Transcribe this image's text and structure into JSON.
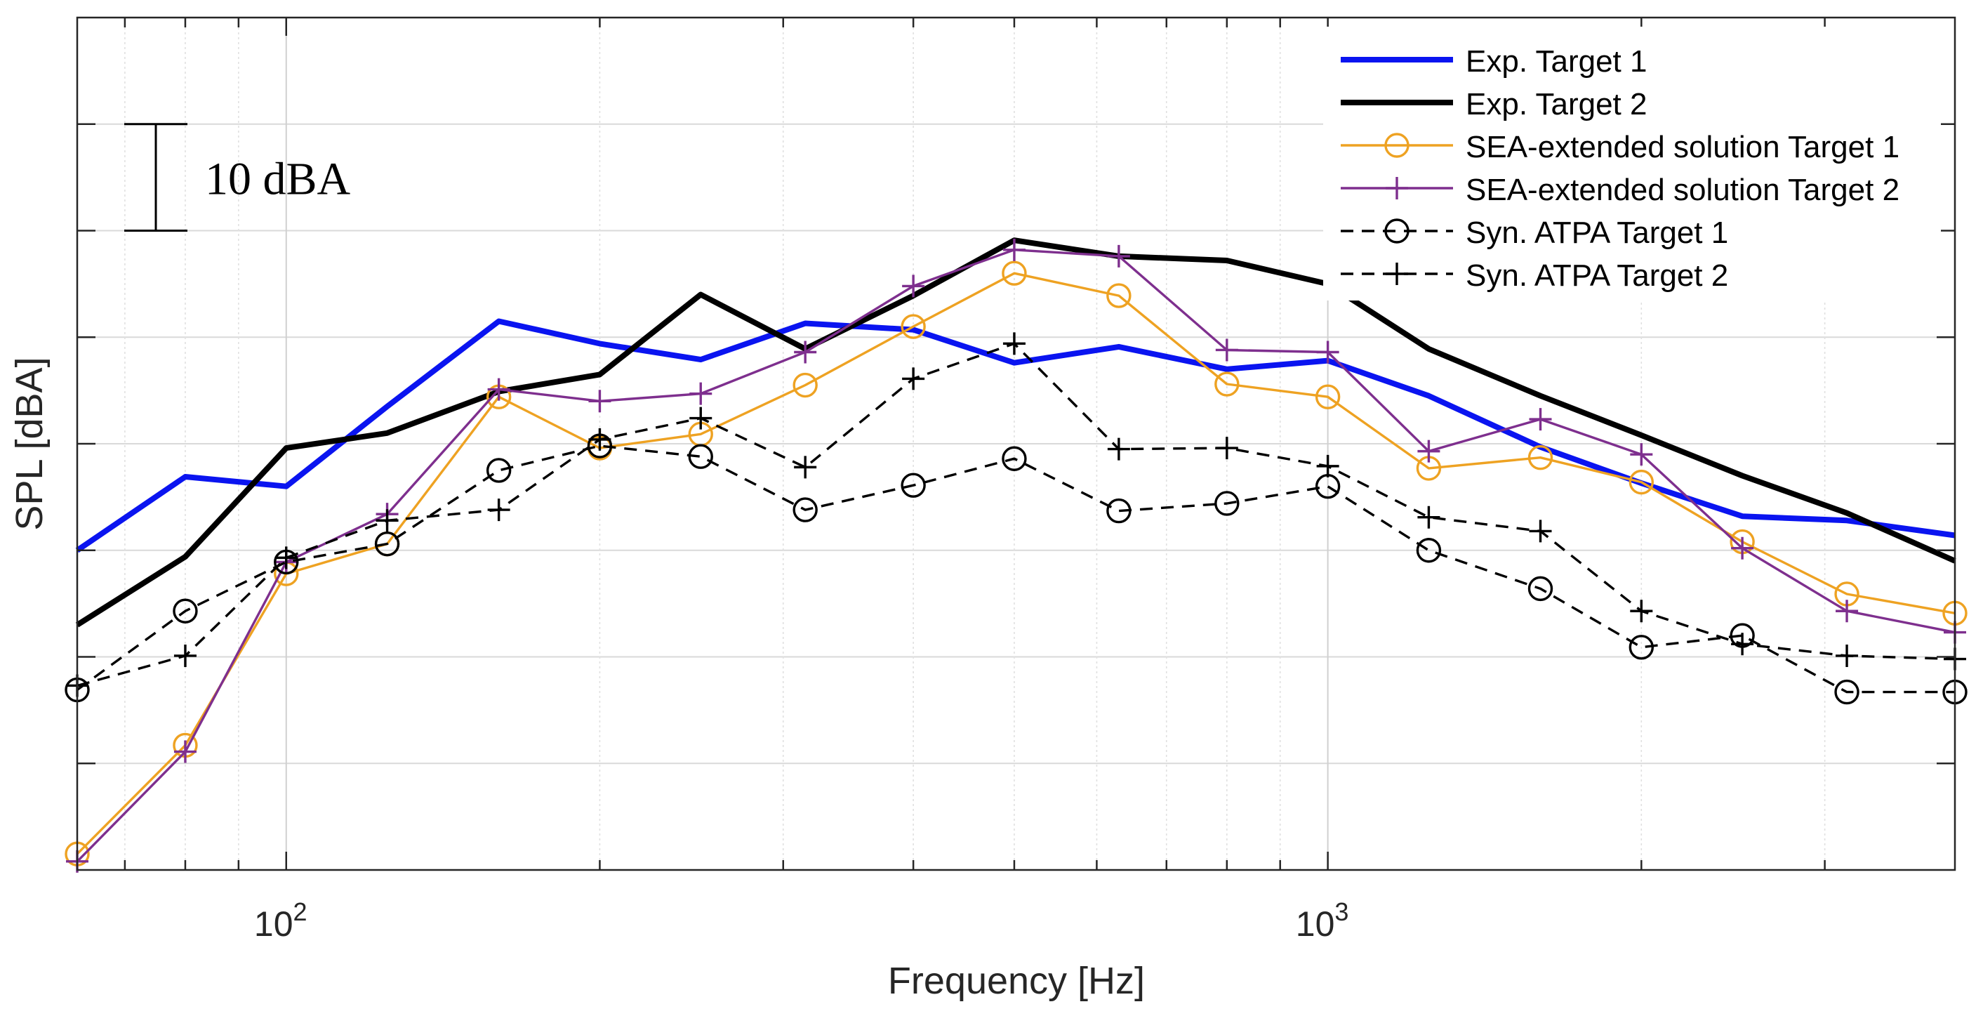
{
  "chart_data": {
    "type": "line",
    "title": "",
    "xlabel": "Frequency [Hz]",
    "ylabel": "SPL [dBA]",
    "xscale": "log",
    "xlim": [
      63,
      4000
    ],
    "ylim": [
      -10,
      70
    ],
    "grid": true,
    "y_tick_labels_shown": false,
    "x_ticks": [
      {
        "value": 100,
        "base": "10",
        "exp": "2"
      },
      {
        "value": 1000,
        "base": "10",
        "exp": "3"
      }
    ],
    "scale_bar": {
      "label": "10 dBA",
      "from": 50,
      "to": 60
    },
    "legend_position": "top-right",
    "x": [
      63,
      80,
      100,
      125,
      160,
      200,
      250,
      315,
      400,
      500,
      630,
      800,
      1000,
      1250,
      1600,
      2000,
      2500,
      3150,
      4000
    ],
    "series": [
      {
        "name": "Exp. Target 1",
        "color": "#0a14f0",
        "style": "solid",
        "marker": "none",
        "width": "thick",
        "values": [
          20.0,
          26.9,
          26.0,
          33.5,
          41.5,
          39.4,
          37.9,
          41.3,
          40.7,
          37.6,
          39.1,
          37.0,
          37.8,
          34.5,
          29.7,
          26.3,
          23.2,
          22.8,
          21.4
        ]
      },
      {
        "name": "Exp. Target 2",
        "color": "#000000",
        "style": "solid",
        "marker": "none",
        "width": "thick",
        "values": [
          13.0,
          19.4,
          29.6,
          31.0,
          34.9,
          36.5,
          44.0,
          38.9,
          43.9,
          49.1,
          47.6,
          47.2,
          45.0,
          38.9,
          34.5,
          30.8,
          27.0,
          23.5,
          19.0
        ]
      },
      {
        "name": "SEA-extended solution Target 1",
        "color": "#eea222",
        "style": "solid",
        "marker": "circle",
        "width": "thin",
        "values": [
          -8.5,
          1.7,
          17.8,
          20.6,
          34.4,
          29.6,
          30.9,
          35.5,
          41.0,
          46.0,
          43.9,
          35.6,
          34.4,
          27.7,
          28.7,
          26.4,
          20.8,
          15.9,
          14.1
        ]
      },
      {
        "name": "SEA-extended solution Target 2",
        "color": "#7e2f8e",
        "style": "solid",
        "marker": "plus",
        "width": "thin",
        "values": [
          -9.2,
          1.1,
          18.9,
          23.4,
          35.1,
          34.0,
          34.7,
          38.6,
          44.8,
          48.2,
          47.6,
          38.8,
          38.6,
          29.3,
          32.3,
          29.0,
          20.2,
          14.3,
          12.3
        ]
      },
      {
        "name": "Syn. ATPA Target 1",
        "color": "#000000",
        "style": "dashed",
        "marker": "circle",
        "width": "thin",
        "values": [
          6.9,
          14.3,
          18.9,
          20.6,
          27.5,
          29.8,
          28.8,
          23.8,
          26.1,
          28.6,
          23.7,
          24.4,
          26.0,
          20.0,
          16.4,
          10.9,
          12.0,
          6.7,
          6.7
        ]
      },
      {
        "name": "Syn. ATPA Target 2",
        "color": "#000000",
        "style": "dashed",
        "marker": "plus",
        "width": "thin",
        "values": [
          7.3,
          10.1,
          19.3,
          22.8,
          23.8,
          30.4,
          32.4,
          27.8,
          36.1,
          39.4,
          29.5,
          29.6,
          27.9,
          23.1,
          21.8,
          14.3,
          11.2,
          10.1,
          9.8
        ]
      }
    ]
  }
}
